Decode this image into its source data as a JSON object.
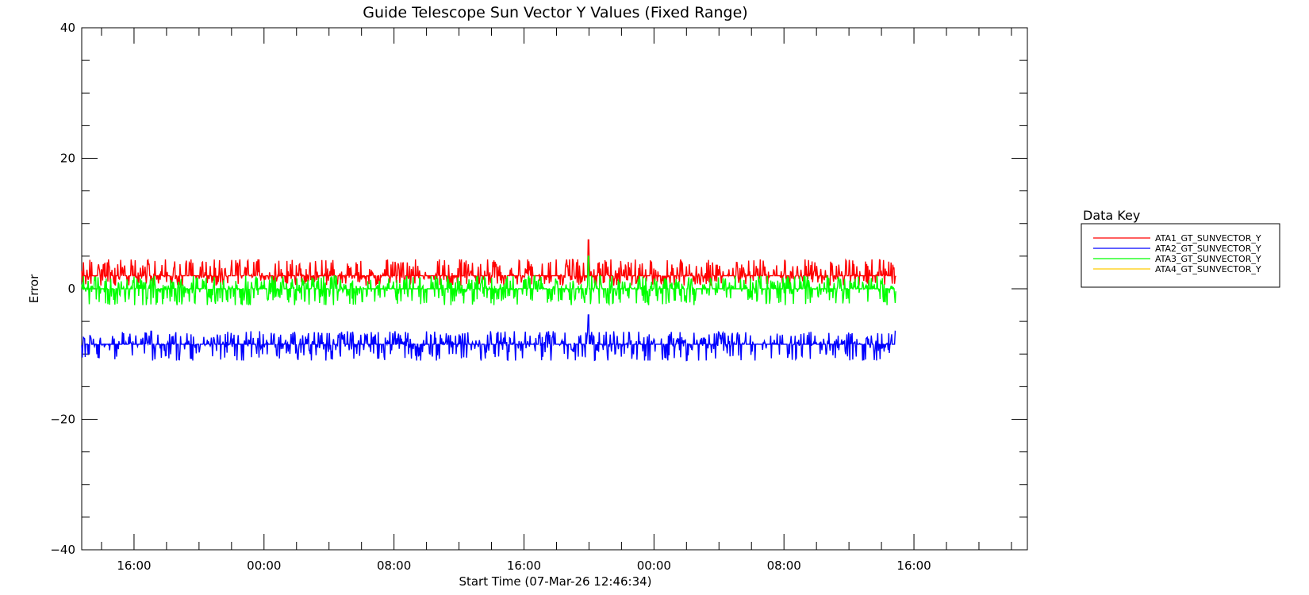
{
  "chart_data": {
    "type": "line",
    "title": "Guide Telescope Sun Vector Y Values (Fixed Range)",
    "xlabel": "Start Time (07-Mar-26 12:46:34)",
    "ylabel": "Error",
    "ylim": [
      -40,
      40
    ],
    "y_major_ticks": [
      -40,
      -20,
      0,
      20,
      40
    ],
    "y_tick_labels": [
      "−40",
      "−20",
      "0",
      "20",
      "40"
    ],
    "x_unit": "hours since start",
    "xlim": [
      0,
      58.2
    ],
    "x_tick_labels": [
      "16:00",
      "00:00",
      "08:00",
      "16:00",
      "00:00",
      "08:00",
      "16:00"
    ],
    "x_major_ticks": [
      3.22,
      11.22,
      19.22,
      27.22,
      35.22,
      43.22,
      51.22
    ],
    "data_end": 50.1,
    "grid": false,
    "legend": {
      "title": "Data Key",
      "placement": "right",
      "entries": [
        {
          "name": "ATA1_GT_SUNVECTOR_Y",
          "color": "#ff0000"
        },
        {
          "name": "ATA2_GT_SUNVECTOR_Y",
          "color": "#0000ff"
        },
        {
          "name": "ATA3_GT_SUNVECTOR_Y",
          "color": "#00ff00"
        },
        {
          "name": "ATA4_GT_SUNVECTOR_Y",
          "color": "#ffcc00"
        }
      ]
    },
    "series": [
      {
        "name": "ATA1_GT_SUNVECTOR_Y",
        "color": "#ff0000",
        "mean": 2.0,
        "low": 0.5,
        "high": 4.5,
        "spike_x": 31.2,
        "spike_y": 7.5
      },
      {
        "name": "ATA2_GT_SUNVECTOR_Y",
        "color": "#0000ff",
        "mean": -8.5,
        "low": -11.0,
        "high": -6.5,
        "spike_x": 31.2,
        "spike_y": -4.0
      },
      {
        "name": "ATA3_GT_SUNVECTOR_Y",
        "color": "#00ff00",
        "mean": 0.0,
        "low": -2.5,
        "high": 2.0,
        "spike_x": 31.2,
        "spike_y": 5.0
      },
      {
        "name": "ATA4_GT_SUNVECTOR_Y",
        "color": "#ffcc00",
        "mean": null
      }
    ]
  }
}
